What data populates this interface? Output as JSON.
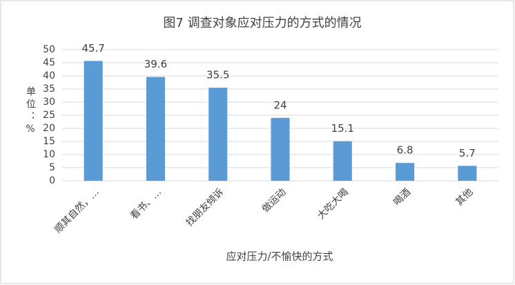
{
  "chart_data": {
    "type": "bar",
    "title": "图7 调查对象应对压力的方式的情况",
    "x_label": "应对压力/不愉快的方式",
    "y_label": "单位：%",
    "categories": [
      "顺其自然，…",
      "看书、…",
      "找朋友倾诉",
      "做运动",
      "大吃大喝",
      "喝酒",
      "其他"
    ],
    "values": [
      45.7,
      39.6,
      35.5,
      24,
      15.1,
      6.8,
      5.7
    ],
    "color": "#5b9bd5",
    "ylim": [
      0,
      50
    ],
    "yticks": [
      0,
      5,
      10,
      15,
      20,
      25,
      30,
      35,
      40,
      45,
      50
    ],
    "grid": true
  }
}
